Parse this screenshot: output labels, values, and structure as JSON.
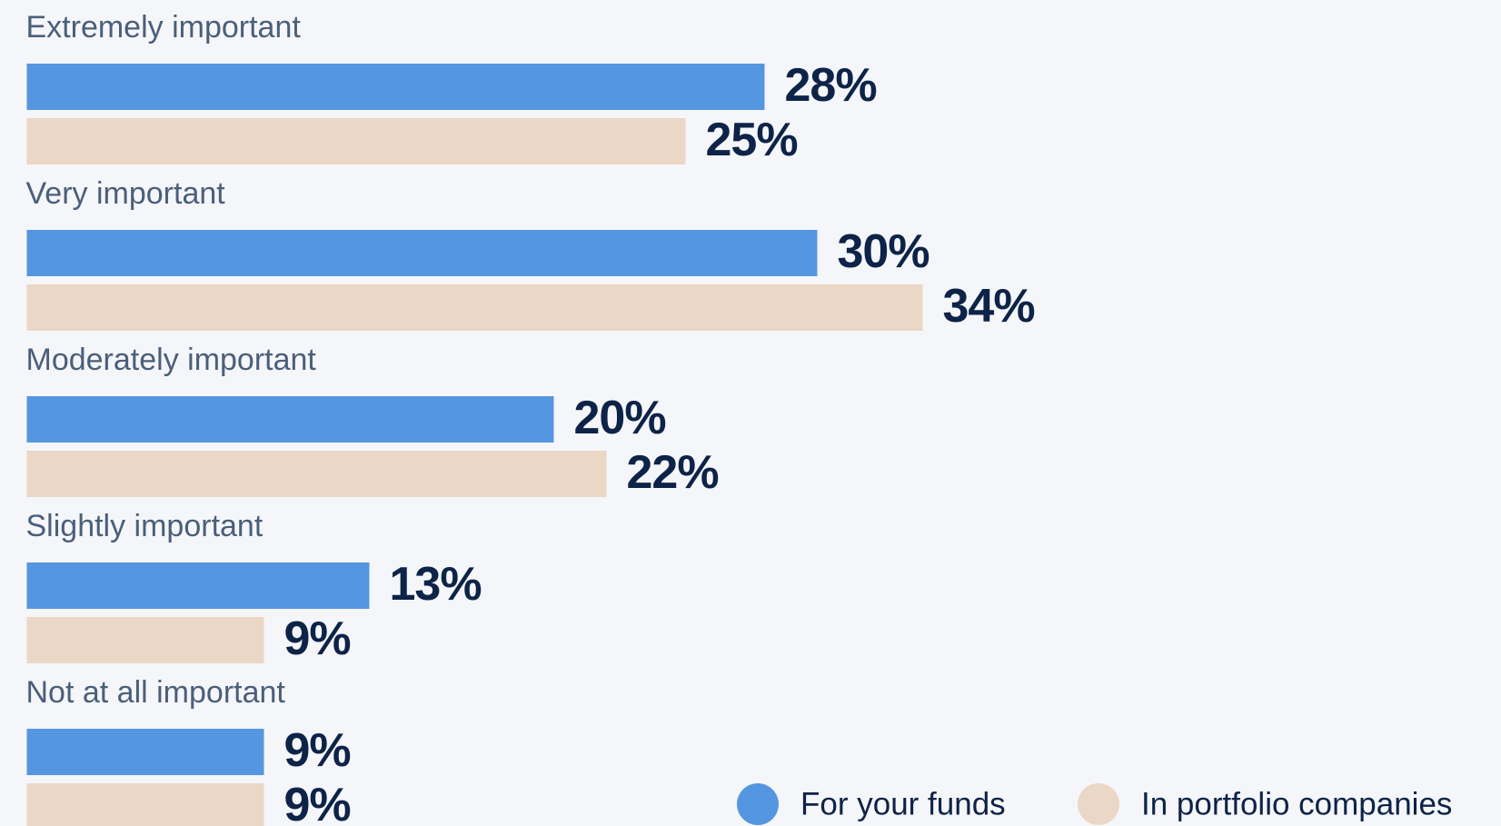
{
  "chart_data": {
    "type": "bar",
    "categories": [
      "Extremely important",
      "Very important",
      "Moderately important",
      "Slightly important",
      "Not at all important"
    ],
    "series": [
      {
        "name": "For your funds",
        "color": "#5596e0",
        "values": [
          28,
          30,
          20,
          13,
          9
        ],
        "value_labels": [
          "28%",
          "30%",
          "20%",
          "13%",
          "9%"
        ]
      },
      {
        "name": "In portfolio companies",
        "color": "#ead7c5",
        "values": [
          25,
          34,
          22,
          9,
          9
        ],
        "value_labels": [
          "25%",
          "34%",
          "22%",
          "9%",
          "9%"
        ]
      }
    ]
  }
}
